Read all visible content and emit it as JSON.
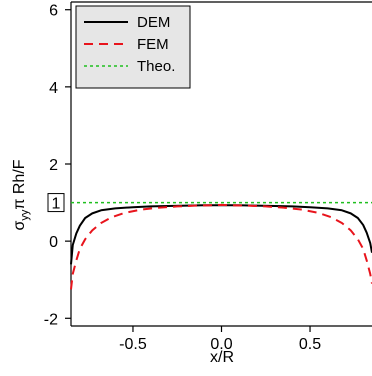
{
  "chart_data": {
    "type": "line",
    "xlabel": "x/R",
    "ylabel": {
      "main": "σ",
      "sub": "yy",
      "rest": "π Rh/F"
    },
    "xlim": [
      -0.85,
      0.85
    ],
    "ylim": [
      -2.2,
      6.2
    ],
    "xticks": [
      -0.5,
      0.0,
      0.5
    ],
    "xtick_labels": [
      "-0.5",
      "0.0",
      "0.5"
    ],
    "yticks": [
      -2,
      0,
      2,
      4,
      6
    ],
    "ytick_labels": [
      "-2",
      "0",
      "2",
      "4",
      "6"
    ],
    "annotation": {
      "text": "1",
      "y": 1
    },
    "legend_position": "top-left",
    "grid": false,
    "series": [
      {
        "name": "DEM",
        "color": "#000000",
        "style": "solid",
        "x": [
          -0.85,
          -0.84,
          -0.82,
          -0.8,
          -0.77,
          -0.73,
          -0.68,
          -0.6,
          -0.5,
          -0.4,
          -0.3,
          -0.2,
          -0.1,
          0.0,
          0.1,
          0.2,
          0.3,
          0.4,
          0.5,
          0.6,
          0.68,
          0.73,
          0.77,
          0.8,
          0.82,
          0.84,
          0.85
        ],
        "y": [
          -0.6,
          -0.1,
          0.2,
          0.4,
          0.6,
          0.72,
          0.8,
          0.85,
          0.88,
          0.9,
          0.91,
          0.92,
          0.93,
          0.93,
          0.93,
          0.92,
          0.91,
          0.9,
          0.88,
          0.85,
          0.8,
          0.72,
          0.6,
          0.42,
          0.22,
          -0.05,
          -0.3
        ]
      },
      {
        "name": "FEM",
        "color": "#e8141c",
        "style": "dashed",
        "x": [
          -0.85,
          -0.84,
          -0.82,
          -0.8,
          -0.77,
          -0.73,
          -0.68,
          -0.62,
          -0.55,
          -0.45,
          -0.35,
          -0.25,
          -0.15,
          -0.05,
          0.0,
          0.05,
          0.15,
          0.25,
          0.35,
          0.45,
          0.55,
          0.62,
          0.68,
          0.73,
          0.77,
          0.8,
          0.82,
          0.84,
          0.85
        ],
        "y": [
          -1.25,
          -0.85,
          -0.5,
          -0.2,
          0.05,
          0.28,
          0.47,
          0.62,
          0.73,
          0.82,
          0.87,
          0.9,
          0.92,
          0.93,
          0.94,
          0.93,
          0.92,
          0.9,
          0.87,
          0.82,
          0.73,
          0.62,
          0.47,
          0.28,
          0.05,
          -0.2,
          -0.5,
          -0.85,
          -1.1
        ]
      },
      {
        "name": "Theo.",
        "color": "#1fbf1f",
        "style": "dotted",
        "x": [
          -0.85,
          0.85
        ],
        "y": [
          1.0,
          1.0
        ]
      }
    ]
  }
}
